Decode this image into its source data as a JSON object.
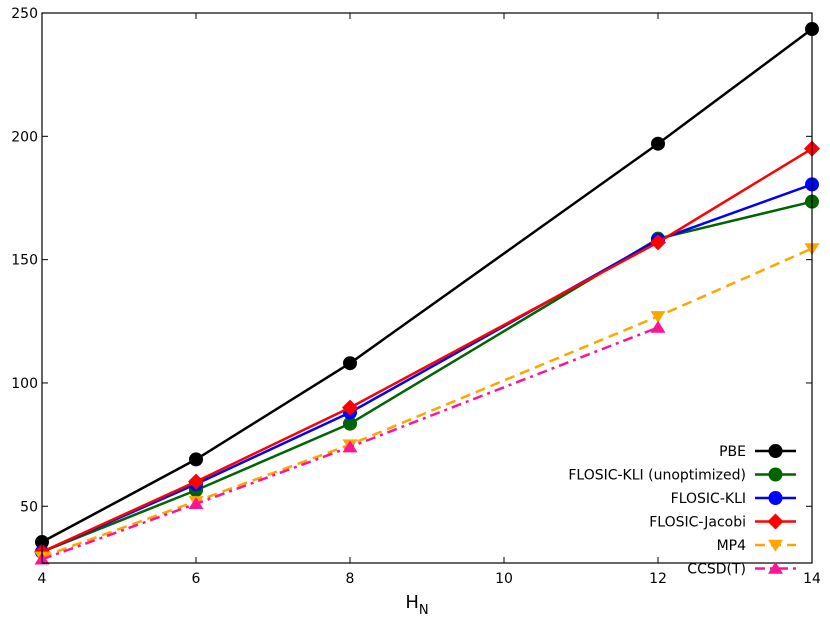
{
  "chart_data": {
    "type": "line",
    "title": "",
    "xlabel": "H",
    "xlabel_subscript": "N",
    "ylabel": "",
    "xlim": [
      4,
      14
    ],
    "ylim": [
      27,
      250
    ],
    "xticks": [
      4,
      6,
      8,
      10,
      12,
      14
    ],
    "yticks": [
      50,
      100,
      150,
      200,
      250
    ],
    "grid": false,
    "legend_position": "bottom-right",
    "series": [
      {
        "name": "PBE",
        "color": "#000000",
        "dash": "solid",
        "marker": "circle",
        "x": [
          4,
          6,
          8,
          12,
          14
        ],
        "y": [
          35.5,
          69,
          108,
          197,
          243.5
        ]
      },
      {
        "name": "FLOSIC-KLI (unoptimized)",
        "color": "#006400",
        "dash": "solid",
        "marker": "circle",
        "x": [
          4,
          6,
          8,
          12,
          14
        ],
        "y": [
          31.5,
          56.5,
          83.5,
          158.5,
          173.5
        ]
      },
      {
        "name": "FLOSIC-KLI",
        "color": "#0000ff",
        "dash": "solid",
        "marker": "circle",
        "x": [
          4,
          6,
          8,
          12,
          14
        ],
        "y": [
          31.5,
          59,
          88,
          158,
          180.5
        ]
      },
      {
        "name": "FLOSIC-Jacobi",
        "color": "#ff0000",
        "dash": "solid",
        "marker": "diamond",
        "x": [
          4,
          6,
          8,
          12,
          14
        ],
        "y": [
          31.5,
          60,
          90,
          157,
          195
        ]
      },
      {
        "name": "MP4",
        "color": "#ffa500",
        "dash": "dashed",
        "marker": "triangle-down",
        "x": [
          4,
          6,
          8,
          12,
          14
        ],
        "y": [
          29.5,
          52,
          75,
          127,
          154.5
        ]
      },
      {
        "name": "CCSD(T)",
        "color": "#ff1493",
        "dash": "dashdot",
        "marker": "triangle-up",
        "x": [
          4,
          6,
          8,
          12
        ],
        "y": [
          28.5,
          51,
          74,
          122.5
        ]
      }
    ]
  }
}
